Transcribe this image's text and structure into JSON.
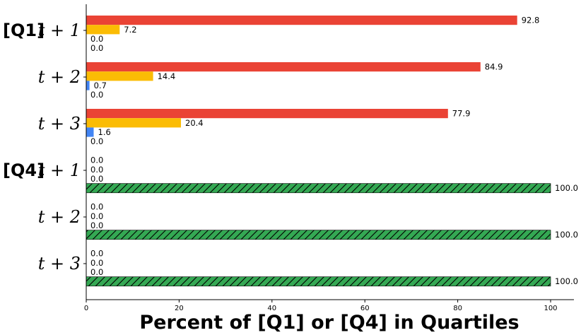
{
  "chart_data": {
    "type": "bar",
    "orientation": "horizontal",
    "xlabel": "Percent of [Q1] or [Q4] in Quartiles",
    "ylabel": "",
    "xlim": [
      0,
      100
    ],
    "xticks": [
      0,
      20,
      40,
      60,
      80,
      100
    ],
    "legend": "none",
    "grid": false,
    "categories": [
      {
        "group": "[Q1]",
        "label": "t + 1"
      },
      {
        "group": "",
        "label": "t + 2"
      },
      {
        "group": "",
        "label": "t + 3"
      },
      {
        "group": "[Q4]",
        "label": "t + 1"
      },
      {
        "group": "",
        "label": "t + 2"
      },
      {
        "group": "",
        "label": "t + 3"
      }
    ],
    "series": [
      {
        "color": "#ea4335",
        "hatch": false,
        "values": [
          92.8,
          84.9,
          77.9,
          0.0,
          0.0,
          0.0
        ]
      },
      {
        "color": "#fbbc04",
        "hatch": false,
        "values": [
          7.2,
          14.4,
          20.4,
          0.0,
          0.0,
          0.0
        ]
      },
      {
        "color": "#4285f4",
        "hatch": false,
        "values": [
          0.0,
          0.7,
          1.6,
          0.0,
          0.0,
          0.0
        ]
      },
      {
        "color": "#34a853",
        "hatch": true,
        "values": [
          0.0,
          0.0,
          0.0,
          100.0,
          100.0,
          100.0
        ]
      }
    ]
  }
}
